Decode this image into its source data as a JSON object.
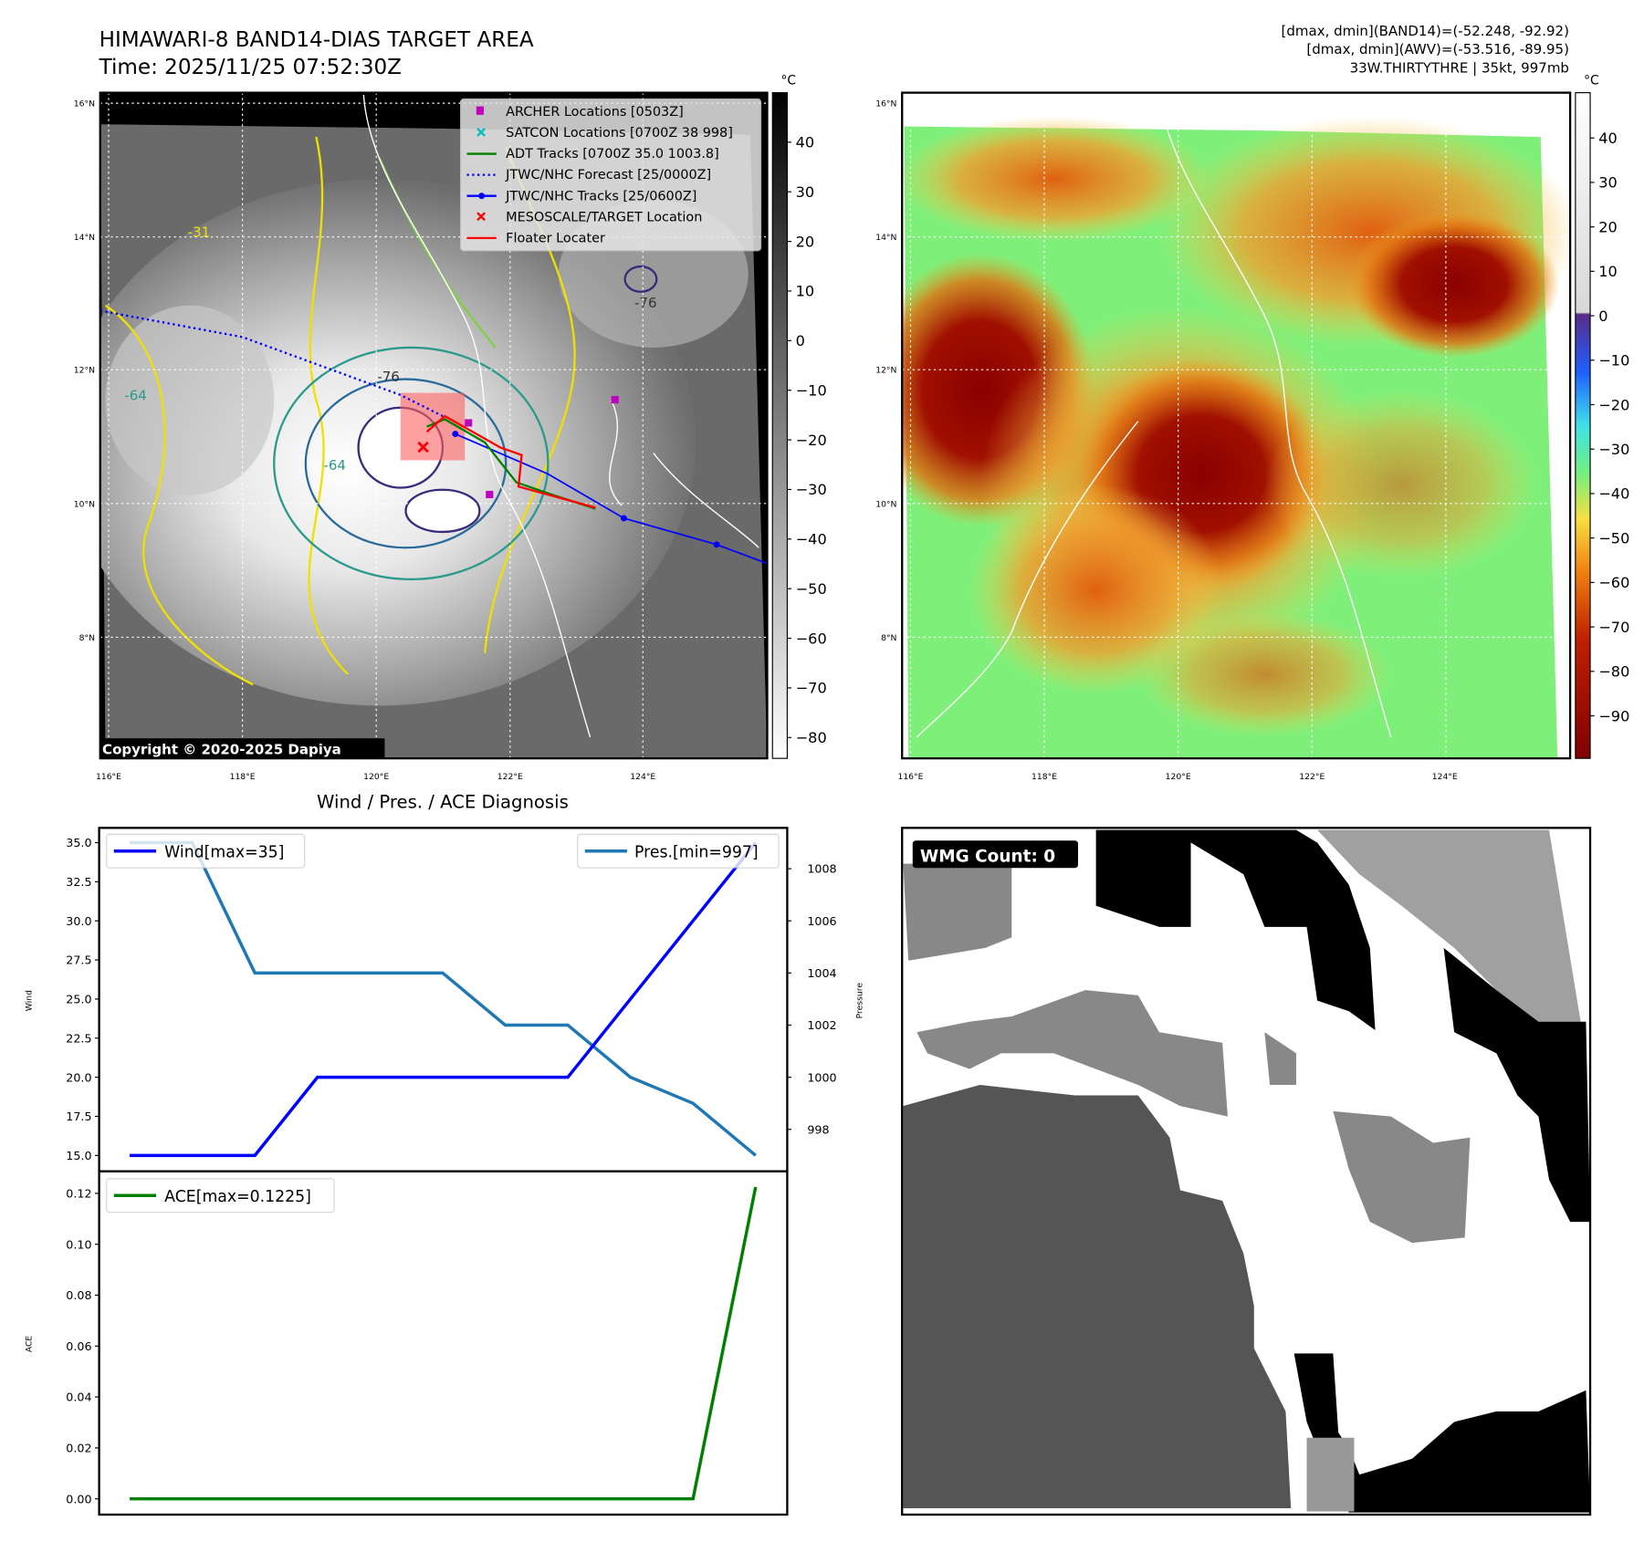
{
  "header": {
    "title": "HIMAWARI-8 BAND14-DIAS TARGET AREA",
    "time": "Time: 2025/11/25 07:52:30Z",
    "info_line1": "[dmax, dmin](BAND14)=(-52.248, -92.92)",
    "info_line2": "[dmax, dmin](AWV)=(-53.516, -89.95)",
    "info_line3": "33W.THIRTYTHRE | 35kt, 997mb"
  },
  "map": {
    "lat_labels": [
      "16°N",
      "14°N",
      "12°N",
      "10°N",
      "8°N"
    ],
    "lon_labels": [
      "116°E",
      "118°E",
      "120°E",
      "122°E",
      "124°E"
    ],
    "copyright": "Copyright © 2020-2025 Dapiya",
    "contour_labels": [
      "-76",
      "-64",
      "-64",
      "-31",
      "-76"
    ],
    "legend": [
      {
        "label": "ARCHER Locations [0503Z]",
        "color": "#bf00bf"
      },
      {
        "label": "SATCON Locations [0700Z 38 998]",
        "color": "#00bfbf"
      },
      {
        "label": "ADT Tracks [0700Z 35.0 1003.8]",
        "color": "#008000"
      },
      {
        "label": "JTWC/NHC Forecast [25/0000Z]",
        "color": "#0000ff"
      },
      {
        "label": "JTWC/NHC Tracks [25/0600Z]",
        "color": "#0000ff"
      },
      {
        "label": "MESOSCALE/TARGET Location",
        "color": "#ff0000"
      },
      {
        "label": "Floater Locater",
        "color": "#ff0000"
      }
    ]
  },
  "colorbar1": {
    "unit": "°C",
    "ticks": [
      "40",
      "30",
      "20",
      "10",
      "0",
      "−10",
      "−20",
      "−30",
      "−40",
      "−50",
      "−60",
      "−70",
      "−80"
    ]
  },
  "colorbar2": {
    "unit": "°C",
    "ticks": [
      "40",
      "30",
      "20",
      "10",
      "0",
      "−10",
      "−20",
      "−30",
      "−40",
      "−50",
      "−60",
      "−70",
      "−80",
      "−90"
    ]
  },
  "wmg": {
    "label": "WMG Count: 0"
  },
  "chart_data": [
    {
      "type": "line",
      "title": "Wind / Pres. / ACE Diagnosis",
      "x": [
        0,
        1,
        2,
        3,
        4,
        5,
        6,
        7,
        8,
        9,
        10
      ],
      "series": [
        {
          "name": "Wind[max=35]",
          "axis": "left",
          "color": "#0000ff",
          "values": [
            15,
            15,
            15,
            20,
            20,
            20,
            20,
            20,
            25,
            30,
            35
          ]
        },
        {
          "name": "Pres.[min=997]",
          "axis": "right",
          "color": "#1f77b4",
          "values": [
            1009,
            1009,
            1004,
            1004,
            1004,
            1004,
            1002,
            1002,
            1000,
            999,
            997
          ]
        }
      ],
      "ylabel": "Wind",
      "y2label": "Pressure",
      "ylim": [
        14.5,
        36
      ],
      "y2lim": [
        996.8,
        1009.6
      ],
      "yticks": [
        "15.0",
        "17.5",
        "20.0",
        "22.5",
        "25.0",
        "27.5",
        "30.0",
        "32.5",
        "35.0"
      ],
      "y2ticks": [
        "998",
        "1000",
        "1002",
        "1004",
        "1006",
        "1008"
      ],
      "legend_placement": "top-left / top-right"
    },
    {
      "type": "line",
      "x": [
        0,
        1,
        2,
        3,
        4,
        5,
        6,
        7,
        8,
        9,
        10
      ],
      "series": [
        {
          "name": "ACE[max=0.1225]",
          "color": "#008000",
          "values": [
            0,
            0,
            0,
            0,
            0,
            0,
            0,
            0,
            0,
            0,
            0.1225
          ]
        }
      ],
      "ylabel": "ACE",
      "ylim": [
        -0.006,
        0.128
      ],
      "yticks": [
        "0.00",
        "0.02",
        "0.04",
        "0.06",
        "0.08",
        "0.10",
        "0.12"
      ],
      "legend_placement": "top-left"
    }
  ]
}
